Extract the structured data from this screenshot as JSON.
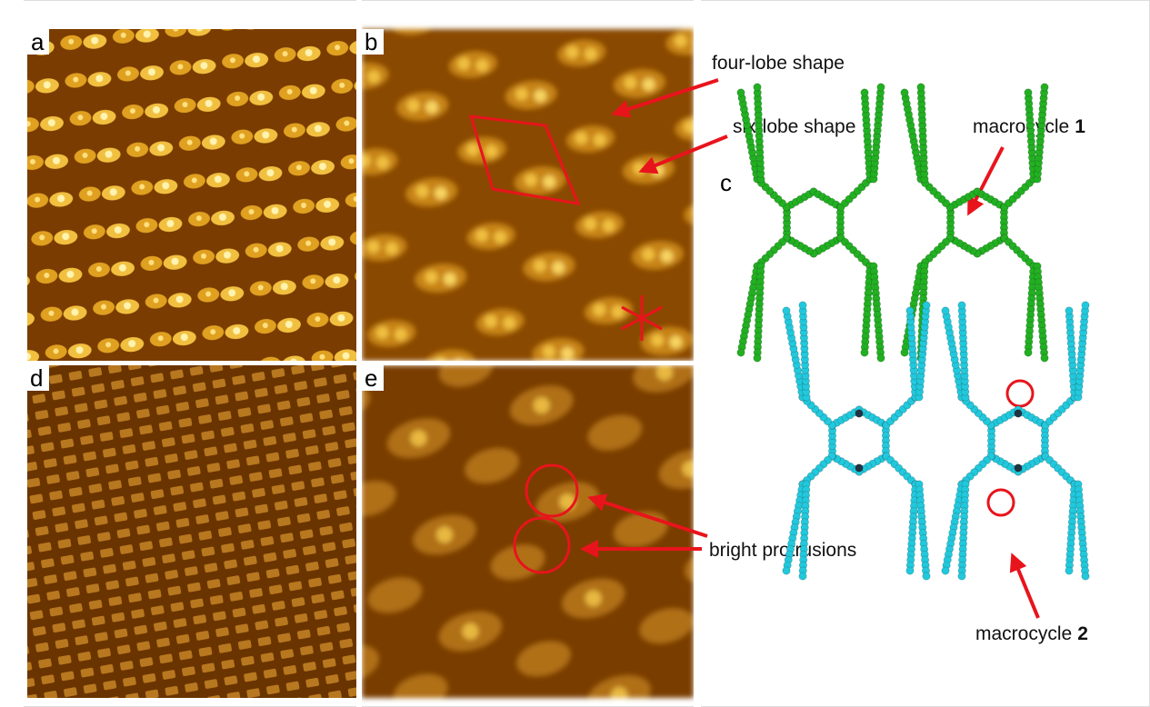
{
  "panels": {
    "a": "a",
    "b": "b",
    "c": "c",
    "d": "d",
    "e": "e"
  },
  "annotations": {
    "four_lobe": "four-lobe shape",
    "six_lobe": "six-lobe shape",
    "macrocycle_1": {
      "text": "macrocycle",
      "number": "1"
    },
    "bright": "bright protrusions",
    "macrocycle_2": {
      "text": "macrocycle",
      "number": "2"
    }
  }
}
